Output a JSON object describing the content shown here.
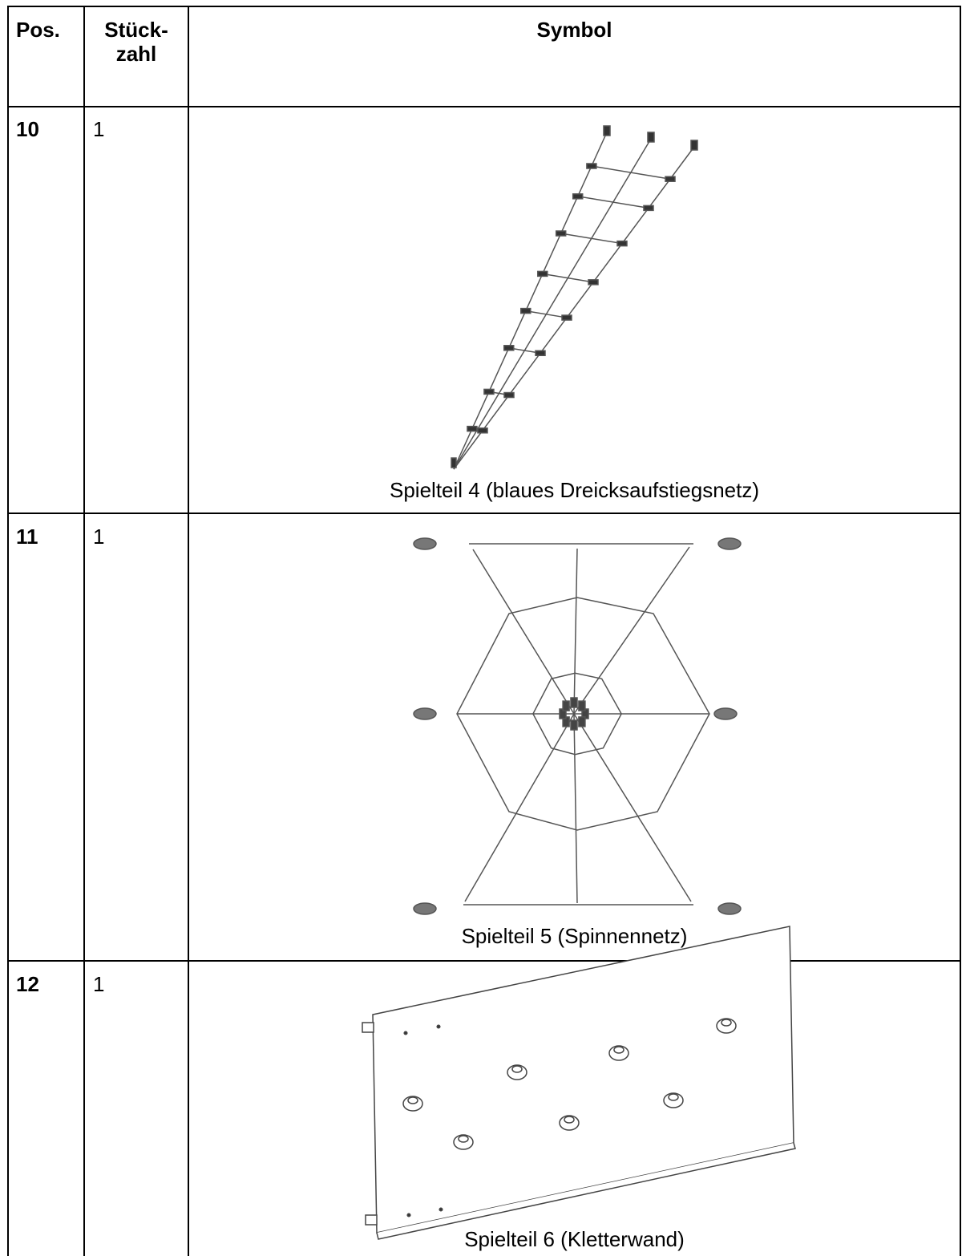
{
  "table": {
    "header": [
      "Pos.",
      "Stück-\nzahl",
      "Symbol"
    ],
    "rows": [
      {
        "pos": "10",
        "qty": "1",
        "caption": "Spielteil 4 (blaues Dreicksaufstiegsnetz)"
      },
      {
        "pos": "11",
        "qty": "1",
        "caption": "Spielteil 5 (Spinnennetz)"
      },
      {
        "pos": "12",
        "qty": "1",
        "caption": "Spielteil 6 (Kletterwand)"
      }
    ]
  }
}
